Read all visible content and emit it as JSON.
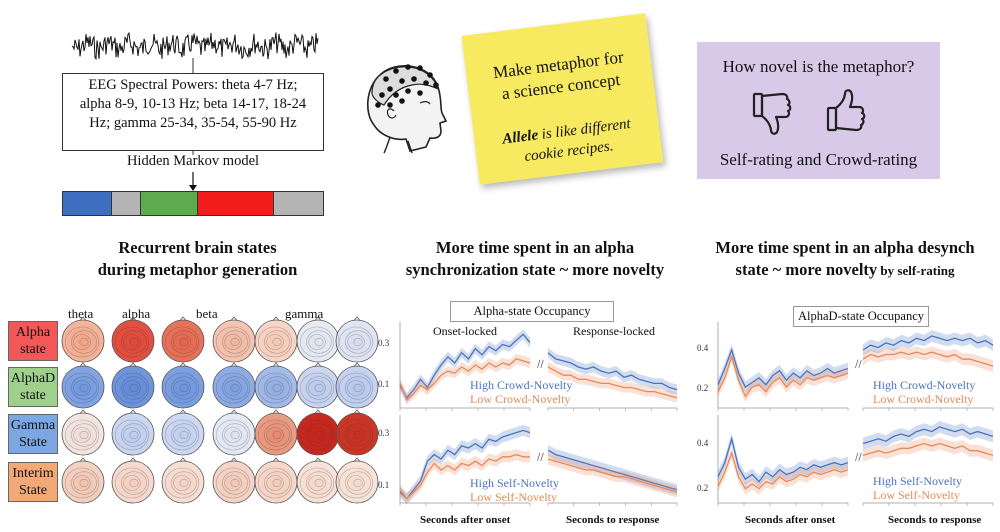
{
  "eeg": {
    "spectral_text": "EEG Spectral Powers: theta 4-7 Hz; alpha 8-9, 10-13 Hz; beta 14-17, 18-24 Hz; gamma 25-34, 35-54, 55-90 Hz",
    "spectral_lines": [
      "EEG Spectral Powers: theta 4-7 Hz;",
      "alpha 8-9, 10-13 Hz; beta 14-17, 18-24",
      "Hz; gamma 25-34, 35-54, 55-90 Hz"
    ],
    "hmm_label": "Hidden Markov model",
    "state_sequence": [
      {
        "color": "#3f6fc0",
        "fraction": 0.19
      },
      {
        "color": "#b4b4b4",
        "fraction": 0.11
      },
      {
        "color": "#5cab4c",
        "fraction": 0.22
      },
      {
        "color": "#f41d1d",
        "fraction": 0.29
      },
      {
        "color": "#b4b4b4",
        "fraction": 0.19
      }
    ]
  },
  "sticky_note": {
    "prompt_lines": [
      "Make metaphor for",
      "a science concept"
    ],
    "example_bold": "Allele",
    "example_rest_line1": " is like different",
    "example_line2": "cookie recipes."
  },
  "rating": {
    "title": "How novel is the metaphor?",
    "footer": "Self-rating and Crowd-rating",
    "icons": [
      "thumbs-down-icon",
      "thumbs-up-icon"
    ]
  },
  "headings": {
    "left": [
      "Recurrent brain states",
      "during metaphor generation"
    ],
    "middle": [
      "More time spent in an alpha",
      "synchronization state ~ more novelty"
    ],
    "right_line1": "More time spent in an alpha desynch",
    "right_line2_main": "state ~ more novelty",
    "right_line2_small": " by self-rating"
  },
  "topomaps": {
    "bands": [
      "theta",
      "alpha",
      "beta",
      "gamma"
    ],
    "states": [
      {
        "label": "Alpha state",
        "lines": [
          "Alpha",
          "state"
        ],
        "color": "#f25858",
        "maps": [
          "#f0a384",
          "#e04a3a",
          "#e4664c",
          "#f0b49c",
          "#f3c6b2",
          "#dde2ee",
          "#d6dcef"
        ],
        "intensity": [
          0.45,
          0.9,
          0.75,
          0.35,
          0.25,
          0.2,
          0.25
        ]
      },
      {
        "label": "AlphaD state",
        "lines": [
          "AlphaD",
          "state"
        ],
        "color": "#9fd08c",
        "maps": [
          "#6f95dd",
          "#5f88d8",
          "#6b92dc",
          "#7a9de0",
          "#8fabe2",
          "#b8c7ea",
          "#b3c4ec"
        ],
        "intensity": [
          0.6,
          0.7,
          0.65,
          0.55,
          0.45,
          0.25,
          0.3
        ]
      },
      {
        "label": "Gamma State",
        "lines": [
          "Gamma",
          "State"
        ],
        "color": "#7da7e3",
        "maps": [
          "#eedad4",
          "#bccbec",
          "#bfcdee",
          "#dbe1f1",
          "#e58a6e",
          "#c6241c",
          "#c93020"
        ],
        "intensity": [
          0.15,
          0.35,
          0.35,
          0.2,
          0.55,
          0.95,
          0.9
        ]
      },
      {
        "label": "Interim State",
        "lines": [
          "Interim",
          "State"
        ],
        "color": "#f3a877",
        "maps": [
          "#f0c2ae",
          "#f3cdbd",
          "#f4d2c3",
          "#f1c7b5",
          "#f2cbb9",
          "#f4d6c9",
          "#f5d9cc"
        ],
        "intensity": [
          0.3,
          0.25,
          0.22,
          0.28,
          0.25,
          0.2,
          0.18
        ]
      }
    ]
  },
  "panels": {
    "alpha": {
      "title": "Alpha-state Occupancy",
      "title_color": "#f25858",
      "top_labels": [
        "Onset-locked",
        "Response-locked"
      ],
      "top_legend": [
        "High Crowd-Novelty",
        "Low Crowd-Novelty"
      ],
      "bottom_legend": [
        "High Self-Novelty",
        "Low Self-Novelty"
      ],
      "yticks": [
        "0.3",
        "0.1"
      ],
      "xlabel_left": "Seconds after onset",
      "xlabel_right": "Seconds to response"
    },
    "alphad": {
      "title": "AlphaD-state Occupancy",
      "title_color": "#9fd08c",
      "top_legend": [
        "High Crowd-Novelty",
        "Low Crowd-Novelty"
      ],
      "bottom_legend": [
        "High Self-Novelty",
        "Low Self-Novelty"
      ],
      "yticks": [
        "0.4",
        "0.2"
      ],
      "xlabel_left": "Seconds after onset",
      "xlabel_right": "Seconds to response"
    }
  },
  "chart_data": [
    {
      "type": "line",
      "title": "Alpha-state Occupancy",
      "panel": "onset-locked, crowd",
      "xlabel": "Seconds after onset",
      "series": [
        {
          "name": "High Crowd-Novelty",
          "values": [
            0.11,
            0.05,
            0.09,
            0.14,
            0.1,
            0.16,
            0.21,
            0.25,
            0.22,
            0.27,
            0.24,
            0.29,
            0.26,
            0.3,
            0.28,
            0.31,
            0.3,
            0.33,
            0.36,
            0.32
          ]
        },
        {
          "name": "Low Crowd-Novelty",
          "values": [
            0.12,
            0.04,
            0.07,
            0.11,
            0.09,
            0.12,
            0.16,
            0.18,
            0.17,
            0.2,
            0.18,
            0.21,
            0.19,
            0.22,
            0.2,
            0.22,
            0.21,
            0.24,
            0.23,
            0.22
          ]
        }
      ]
    },
    {
      "type": "line",
      "title": "Alpha-state Occupancy",
      "panel": "response-locked, crowd",
      "xlabel": "Seconds to response",
      "series": [
        {
          "name": "High Crowd-Novelty",
          "values": [
            0.27,
            0.24,
            0.23,
            0.22,
            0.2,
            0.19,
            0.2,
            0.18,
            0.17,
            0.18,
            0.15,
            0.16,
            0.14,
            0.13,
            0.12,
            0.12,
            0.1,
            0.09
          ]
        },
        {
          "name": "Low Crowd-Novelty",
          "values": [
            0.2,
            0.18,
            0.16,
            0.16,
            0.14,
            0.14,
            0.13,
            0.12,
            0.12,
            0.11,
            0.1,
            0.1,
            0.09,
            0.08,
            0.08,
            0.07,
            0.06,
            0.05
          ]
        }
      ]
    },
    {
      "type": "line",
      "title": "Alpha-state Occupancy",
      "panel": "onset-locked, self",
      "xlabel": "Seconds after onset",
      "series": [
        {
          "name": "High Self-Novelty",
          "values": [
            0.05,
            0.02,
            0.06,
            0.1,
            0.19,
            0.22,
            0.2,
            0.24,
            0.22,
            0.26,
            0.25,
            0.27,
            0.25,
            0.29,
            0.28,
            0.3,
            0.31,
            0.32,
            0.33,
            0.32
          ]
        },
        {
          "name": "Low Self-Novelty",
          "values": [
            0.06,
            0.02,
            0.05,
            0.08,
            0.14,
            0.18,
            0.15,
            0.17,
            0.15,
            0.18,
            0.17,
            0.19,
            0.17,
            0.2,
            0.19,
            0.21,
            0.21,
            0.22,
            0.21,
            0.21
          ]
        }
      ]
    },
    {
      "type": "line",
      "title": "Alpha-state Occupancy",
      "panel": "response-locked, self",
      "xlabel": "Seconds to response",
      "series": [
        {
          "name": "High Self-Novelty",
          "values": [
            0.24,
            0.22,
            0.21,
            0.2,
            0.19,
            0.18,
            0.17,
            0.16,
            0.15,
            0.14,
            0.13,
            0.12,
            0.11,
            0.1,
            0.09,
            0.08,
            0.07,
            0.06
          ]
        },
        {
          "name": "Low Self-Novelty",
          "values": [
            0.2,
            0.19,
            0.18,
            0.17,
            0.16,
            0.15,
            0.15,
            0.14,
            0.13,
            0.12,
            0.12,
            0.11,
            0.1,
            0.09,
            0.08,
            0.07,
            0.06,
            0.05
          ]
        }
      ]
    },
    {
      "type": "line",
      "title": "AlphaD-state Occupancy",
      "panel": "onset-locked, crowd",
      "xlabel": "Seconds after onset",
      "series": [
        {
          "name": "High Crowd-Novelty",
          "values": [
            0.25,
            0.32,
            0.4,
            0.3,
            0.24,
            0.26,
            0.28,
            0.25,
            0.29,
            0.31,
            0.27,
            0.3,
            0.28,
            0.31,
            0.29,
            0.3,
            0.32,
            0.3,
            0.31,
            0.32
          ]
        },
        {
          "name": "Low Crowd-Novelty",
          "values": [
            0.22,
            0.28,
            0.37,
            0.27,
            0.2,
            0.24,
            0.25,
            0.22,
            0.26,
            0.28,
            0.24,
            0.27,
            0.25,
            0.28,
            0.27,
            0.28,
            0.29,
            0.28,
            0.29,
            0.3
          ]
        }
      ]
    },
    {
      "type": "line",
      "title": "AlphaD-state Occupancy",
      "panel": "response-locked, crowd",
      "xlabel": "Seconds to response",
      "series": [
        {
          "name": "High Crowd-Novelty",
          "values": [
            0.4,
            0.42,
            0.41,
            0.43,
            0.42,
            0.44,
            0.43,
            0.45,
            0.44,
            0.46,
            0.45,
            0.44,
            0.45,
            0.44,
            0.45,
            0.43,
            0.44,
            0.42
          ]
        },
        {
          "name": "Low Crowd-Novelty",
          "values": [
            0.36,
            0.38,
            0.37,
            0.38,
            0.38,
            0.39,
            0.38,
            0.39,
            0.38,
            0.39,
            0.38,
            0.37,
            0.38,
            0.36,
            0.36,
            0.35,
            0.34,
            0.33
          ]
        }
      ]
    },
    {
      "type": "line",
      "title": "AlphaD-state Occupancy",
      "panel": "onset-locked, self",
      "xlabel": "Seconds after onset",
      "series": [
        {
          "name": "High Self-Novelty",
          "values": [
            0.26,
            0.32,
            0.42,
            0.3,
            0.25,
            0.27,
            0.24,
            0.28,
            0.26,
            0.29,
            0.27,
            0.28,
            0.3,
            0.29,
            0.31,
            0.3,
            0.31,
            0.32,
            0.31,
            0.32
          ]
        },
        {
          "name": "Low Self-Novelty",
          "values": [
            0.22,
            0.28,
            0.36,
            0.26,
            0.21,
            0.23,
            0.21,
            0.24,
            0.23,
            0.26,
            0.24,
            0.25,
            0.27,
            0.26,
            0.28,
            0.27,
            0.28,
            0.29,
            0.28,
            0.29
          ]
        }
      ]
    },
    {
      "type": "line",
      "title": "AlphaD-state Occupancy",
      "panel": "response-locked, self",
      "xlabel": "Seconds to response",
      "series": [
        {
          "name": "High Self-Novelty",
          "values": [
            0.4,
            0.41,
            0.42,
            0.41,
            0.43,
            0.44,
            0.43,
            0.45,
            0.46,
            0.45,
            0.47,
            0.46,
            0.45,
            0.46,
            0.44,
            0.45,
            0.44,
            0.43
          ]
        },
        {
          "name": "Low Self-Novelty",
          "values": [
            0.35,
            0.36,
            0.37,
            0.36,
            0.37,
            0.38,
            0.38,
            0.39,
            0.4,
            0.39,
            0.4,
            0.39,
            0.38,
            0.39,
            0.37,
            0.37,
            0.36,
            0.35
          ]
        }
      ]
    }
  ]
}
